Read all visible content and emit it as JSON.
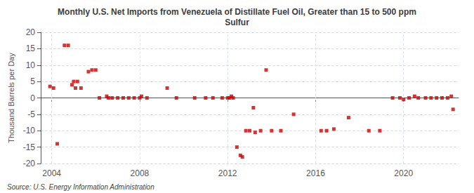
{
  "chart_data": {
    "type": "scatter",
    "title": "Monthly U.S. Net Imports from Venezuela of Distillate Fuel Oil, Greater than 15 to 500 ppm\nSulfur",
    "ylabel": "Thousand Barrels per Day",
    "annotation": "Source: U.S. Energy Information Administration",
    "color": "#cc0000",
    "marker": "square",
    "grid": true,
    "xlim": [
      2003.5,
      2022.5
    ],
    "ylim": [
      -20,
      20
    ],
    "xticks": [
      2004,
      2008,
      2012,
      2016,
      2020
    ],
    "yticks": [
      -20,
      -15,
      -10,
      -5,
      0,
      5,
      10,
      15,
      20
    ],
    "x": [
      2003.92,
      2004.08,
      2004.25,
      2004.58,
      2004.75,
      2004.92,
      2005.0,
      2005.08,
      2005.17,
      2005.33,
      2005.67,
      2005.83,
      2006.0,
      2006.17,
      2006.5,
      2006.58,
      2006.75,
      2007.0,
      2007.25,
      2007.5,
      2007.75,
      2008.0,
      2008.08,
      2008.33,
      2009.25,
      2009.67,
      2010.5,
      2011.0,
      2011.33,
      2011.75,
      2012.0,
      2012.08,
      2012.17,
      2012.25,
      2012.42,
      2012.58,
      2012.67,
      2012.83,
      2013.0,
      2013.17,
      2013.25,
      2013.5,
      2013.75,
      2014.0,
      2014.42,
      2015.0,
      2016.25,
      2016.5,
      2016.83,
      2017.5,
      2018.42,
      2018.92,
      2019.5,
      2019.83,
      2020.0,
      2020.25,
      2020.5,
      2020.67,
      2021.0,
      2021.25,
      2021.5,
      2021.75,
      2022.0,
      2022.17,
      2022.25
    ],
    "values": [
      3.5,
      3.0,
      -14.0,
      16.0,
      16.0,
      4.0,
      5.0,
      3.0,
      5.0,
      3.0,
      8.0,
      8.5,
      8.5,
      0.0,
      0.5,
      0.0,
      0.0,
      0.0,
      0.0,
      0.0,
      0.0,
      0.0,
      0.5,
      0.0,
      3.0,
      0.0,
      0.0,
      0.0,
      0.0,
      0.0,
      0.0,
      0.0,
      0.5,
      0.0,
      -15.0,
      -17.5,
      -18.0,
      -10.0,
      -10.0,
      -3.0,
      -10.5,
      -10.0,
      8.5,
      -10.0,
      -10.0,
      -5.0,
      -10.0,
      -10.0,
      -9.5,
      -6.0,
      -10.0,
      -10.0,
      0.0,
      0.0,
      -0.5,
      0.0,
      0.5,
      0.0,
      0.0,
      0.0,
      0.0,
      0.0,
      0.0,
      0.5,
      -3.5
    ]
  }
}
